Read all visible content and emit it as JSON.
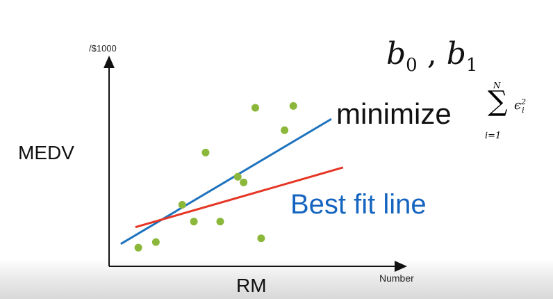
{
  "chart_data": {
    "type": "scatter",
    "xlabel": "RM",
    "ylabel": "MEDV",
    "x_unit": "Number",
    "y_unit": "/$1000",
    "points": [
      {
        "x": 1.0,
        "y": 1.0
      },
      {
        "x": 1.6,
        "y": 1.3
      },
      {
        "x": 2.5,
        "y": 3.3
      },
      {
        "x": 2.9,
        "y": 2.4
      },
      {
        "x": 3.3,
        "y": 6.1
      },
      {
        "x": 3.8,
        "y": 2.4
      },
      {
        "x": 4.4,
        "y": 4.8
      },
      {
        "x": 4.6,
        "y": 4.5
      },
      {
        "x": 5.0,
        "y": 8.5
      },
      {
        "x": 5.2,
        "y": 1.5
      },
      {
        "x": 6.0,
        "y": 7.3
      },
      {
        "x": 6.3,
        "y": 8.6
      }
    ],
    "lines": [
      {
        "color": "#1e73be",
        "x": [
          0.4,
          7.6
        ],
        "y": [
          1.2,
          7.9
        ]
      },
      {
        "color": "#e53524",
        "x": [
          0.9,
          8.0
        ],
        "y": [
          2.1,
          5.3
        ]
      }
    ],
    "xlim": [
      0,
      10
    ],
    "ylim": [
      0,
      11
    ],
    "point_color": "#8bb73a",
    "grid": false
  },
  "annotations": {
    "coefficients": {
      "b": "b",
      "sub0": "0",
      "sep": " , ",
      "sub1": "1"
    },
    "minimize": "minimize",
    "sum": {
      "upper": "N",
      "sign": "∑",
      "lower": "i=1",
      "term": "ϵ",
      "term_sup": "2",
      "term_sub": "i"
    },
    "best_fit": "Best fit line"
  }
}
